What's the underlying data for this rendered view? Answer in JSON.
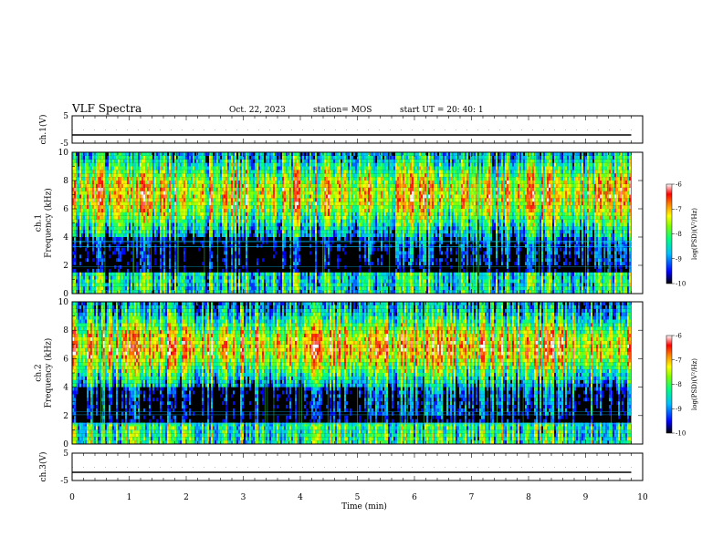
{
  "header": {
    "title": "VLF Spectra",
    "date": "Oct. 22, 2023",
    "station": "station= MOS",
    "start_ut": "start  UT =   20: 40: 1"
  },
  "chart_data": [
    {
      "type": "line",
      "name": "ch1-voltage",
      "ylabel": "ch.1(V)",
      "ylim": [
        -5,
        5
      ],
      "yticks": [
        "5",
        "-5"
      ],
      "xlim": [
        0,
        10
      ],
      "series": [
        {
          "x": [
            0,
            9.8
          ],
          "values": [
            -2.0,
            -2.0
          ]
        }
      ]
    },
    {
      "type": "heatmap",
      "name": "ch1-spectrogram",
      "ylabel": "ch.1\nFrequency (kHz)",
      "ylim": [
        0,
        10
      ],
      "yticks": [
        "0",
        "2",
        "4",
        "6",
        "8",
        "10"
      ],
      "xlim": [
        0,
        10
      ],
      "data_end_min": 9.8,
      "colorbar": {
        "label": "log(PSD)(V²/Hz)",
        "range": [
          -10,
          -6
        ],
        "ticks": [
          "-6",
          "-7",
          "-8",
          "-9",
          "-10"
        ]
      }
    },
    {
      "type": "heatmap",
      "name": "ch2-spectrogram",
      "ylabel": "ch.2\nFrequency (kHz)",
      "ylim": [
        0,
        10
      ],
      "yticks": [
        "0",
        "2",
        "4",
        "6",
        "8",
        "10"
      ],
      "xlim": [
        0,
        10
      ],
      "data_end_min": 9.8,
      "colorbar": {
        "label": "log(PSD)(V²/Hz)",
        "range": [
          -10,
          -6
        ],
        "ticks": [
          "-6",
          "-7",
          "-8",
          "-9",
          "-10"
        ]
      }
    },
    {
      "type": "line",
      "name": "ch3-voltage",
      "ylabel": "ch.3(V)",
      "ylim": [
        -5,
        5
      ],
      "yticks": [
        "5",
        "-5"
      ],
      "xlim": [
        0,
        10
      ],
      "series": [
        {
          "x": [
            0,
            9.8
          ],
          "values": [
            -2.0,
            -2.0
          ]
        }
      ]
    }
  ],
  "x_axis": {
    "label": "Time (min)",
    "range": [
      0,
      10
    ],
    "ticks": [
      "0",
      "1",
      "2",
      "3",
      "4",
      "5",
      "6",
      "7",
      "8",
      "9",
      "10"
    ]
  },
  "colors": {
    "colormap": [
      "#000080",
      "#0000ff",
      "#0080ff",
      "#00ffff",
      "#80ff00",
      "#ffff00",
      "#ff8000",
      "#ff0000",
      "#ffffff"
    ],
    "background": "#000000",
    "line": "#000000"
  }
}
